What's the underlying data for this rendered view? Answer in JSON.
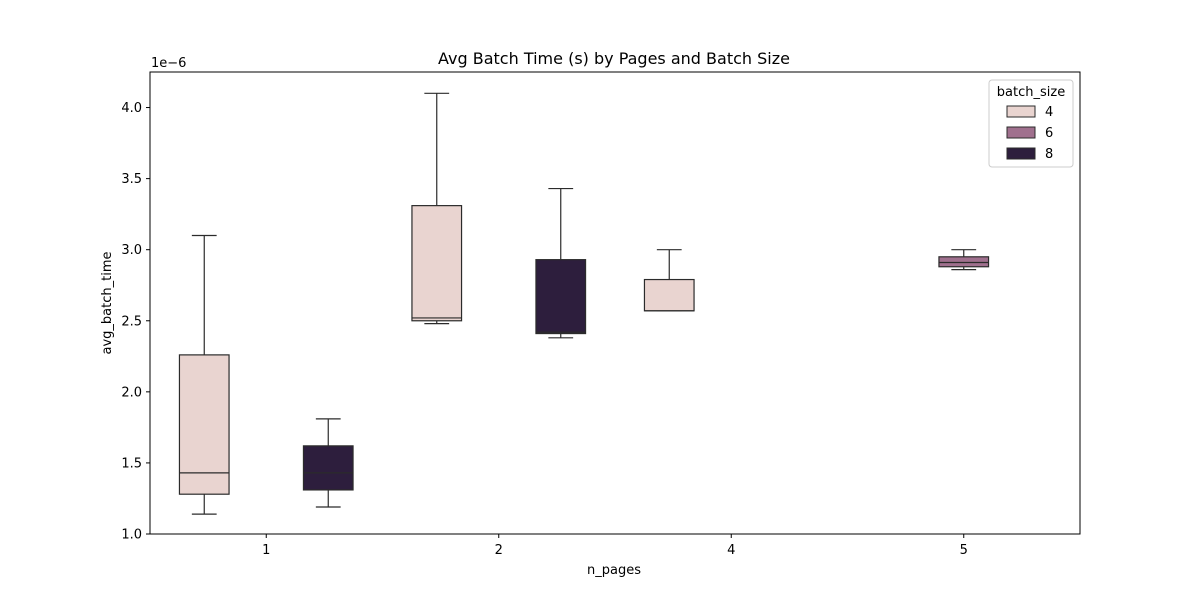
{
  "chart_data": {
    "type": "box",
    "title": "Avg Batch Time (s) by Pages and Batch Size",
    "xlabel": "n_pages",
    "ylabel": "avg_batch_time",
    "y_offset_label": "1e−6",
    "categories": [
      "1",
      "2",
      "4",
      "5"
    ],
    "ylim": [
      1.0,
      4.25
    ],
    "yticks": [
      "1.0",
      "1.5",
      "2.0",
      "2.5",
      "3.0",
      "3.5",
      "4.0"
    ],
    "legend": {
      "title": "batch_size",
      "placement": "top-right",
      "entries": [
        "4",
        "6",
        "8"
      ]
    },
    "series": [
      {
        "name": "4",
        "color": "#e9d4d0",
        "boxes": [
          {
            "category": "1",
            "whisker_low": 1.14,
            "q1": 1.28,
            "median": 1.43,
            "q3": 2.26,
            "whisker_high": 3.1
          },
          {
            "category": "2",
            "whisker_low": 2.48,
            "q1": 2.5,
            "median": 2.52,
            "q3": 3.31,
            "whisker_high": 4.1
          },
          {
            "category": "4",
            "whisker_low": 2.57,
            "q1": 2.57,
            "median": 2.57,
            "q3": 2.79,
            "whisker_high": 3.0
          }
        ]
      },
      {
        "name": "6",
        "color": "#a0708e",
        "boxes": [
          {
            "category": "5",
            "whisker_low": 2.86,
            "q1": 2.88,
            "median": 2.91,
            "q3": 2.95,
            "whisker_high": 3.0
          }
        ]
      },
      {
        "name": "8",
        "color": "#2d1e3d",
        "boxes": [
          {
            "category": "1",
            "whisker_low": 1.19,
            "q1": 1.31,
            "median": 1.43,
            "q3": 1.62,
            "whisker_high": 1.81
          },
          {
            "category": "2",
            "whisker_low": 2.38,
            "q1": 2.41,
            "median": 2.42,
            "q3": 2.93,
            "whisker_high": 3.43
          }
        ]
      }
    ]
  }
}
